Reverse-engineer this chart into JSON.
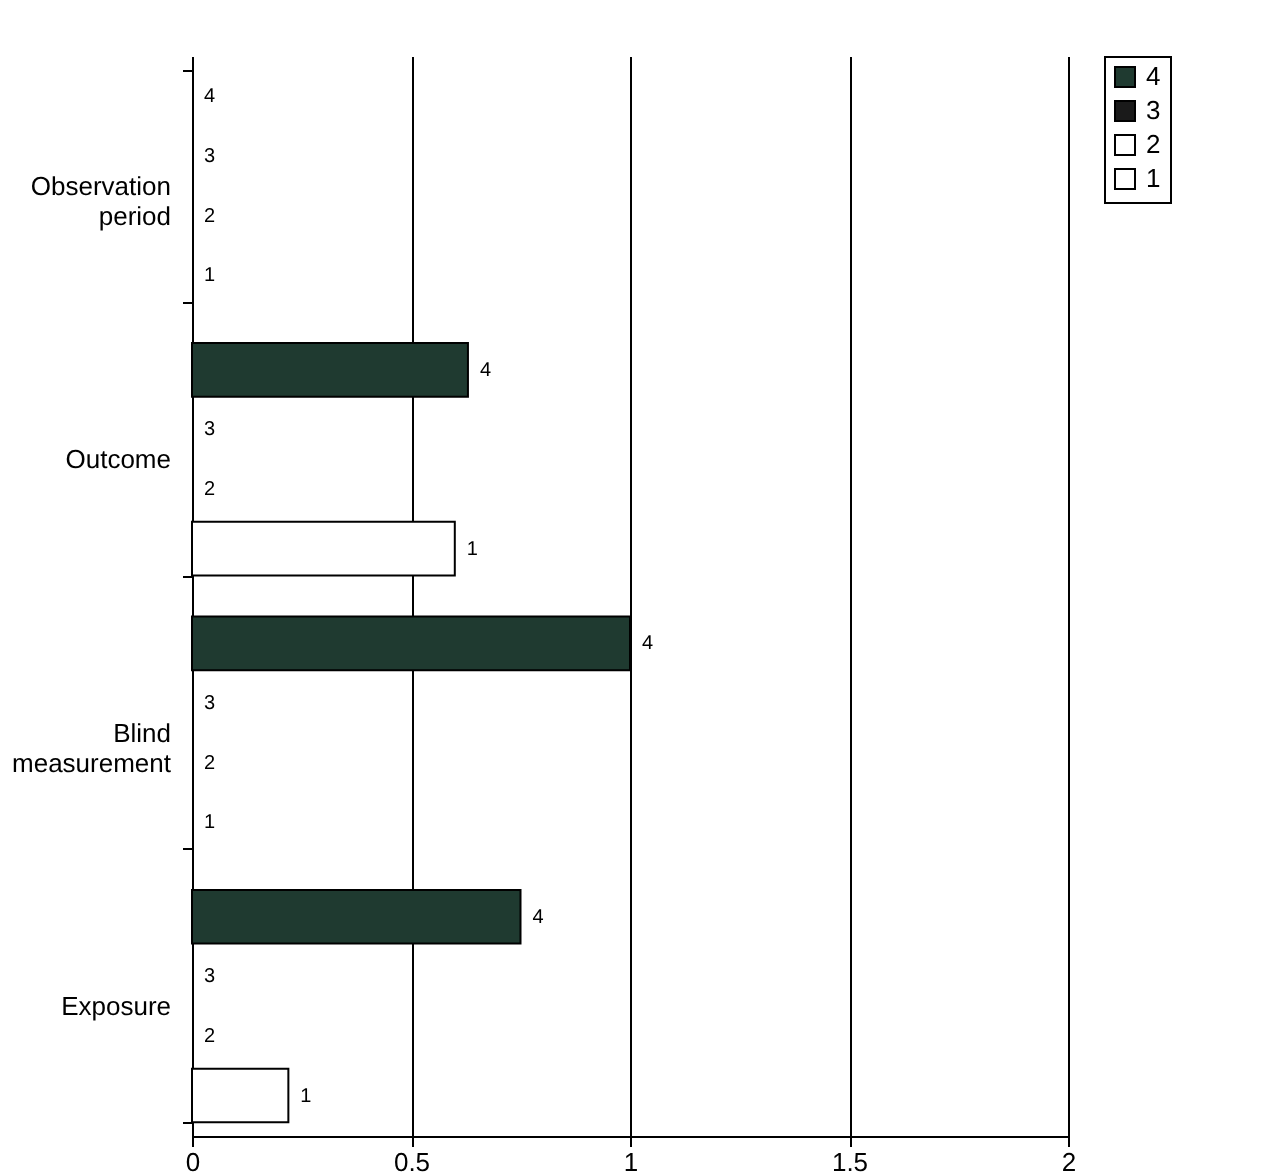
{
  "chart_data": {
    "type": "bar",
    "orientation": "horizontal",
    "categories": [
      "Observation period",
      "Outcome",
      "Blind measurement",
      "Exposure"
    ],
    "series": [
      {
        "name": "4",
        "color": "#1f3a30",
        "values": [
          0,
          0.63,
          1,
          0.75
        ]
      },
      {
        "name": "3",
        "color": "#1a1a1a",
        "values": [
          0,
          0,
          0,
          0
        ]
      },
      {
        "name": "2",
        "color": "#ffffff",
        "values": [
          0,
          0,
          0,
          0
        ]
      },
      {
        "name": "1",
        "color": "#ffffff",
        "values": [
          0,
          0.6,
          0,
          0.22
        ]
      }
    ],
    "xlim": [
      0,
      2
    ],
    "xticks": [
      0,
      0.5,
      1,
      1.5,
      2
    ],
    "grid": "x",
    "legend": "right"
  }
}
